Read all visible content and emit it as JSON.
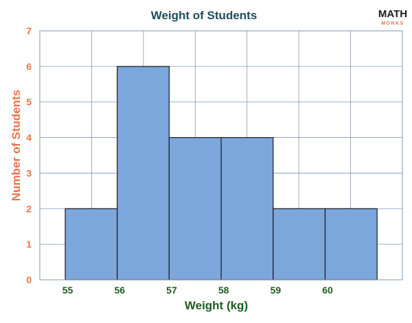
{
  "chart_data": {
    "type": "bar",
    "title": "Weight of Students",
    "xlabel": "Weight (kg)",
    "ylabel": "Number of Students",
    "categories": [
      "55",
      "56",
      "57",
      "58",
      "59",
      "60"
    ],
    "values": [
      2,
      6,
      4,
      4,
      2,
      2
    ],
    "yticks": [
      "0",
      "1",
      "2",
      "3",
      "4",
      "5",
      "6",
      "7"
    ],
    "ylim": [
      0,
      7
    ],
    "grid": true,
    "bar_gap": 0,
    "colors": {
      "bar_fill": "#7ba7dc",
      "bar_stroke": "#1a1a1a",
      "grid": "#7a9ab8",
      "title": "#1f4d5c",
      "y_axis": "#e8734a",
      "x_axis": "#1d5c1d"
    }
  },
  "logo": {
    "main": "MATH",
    "sub": "MONKS"
  }
}
